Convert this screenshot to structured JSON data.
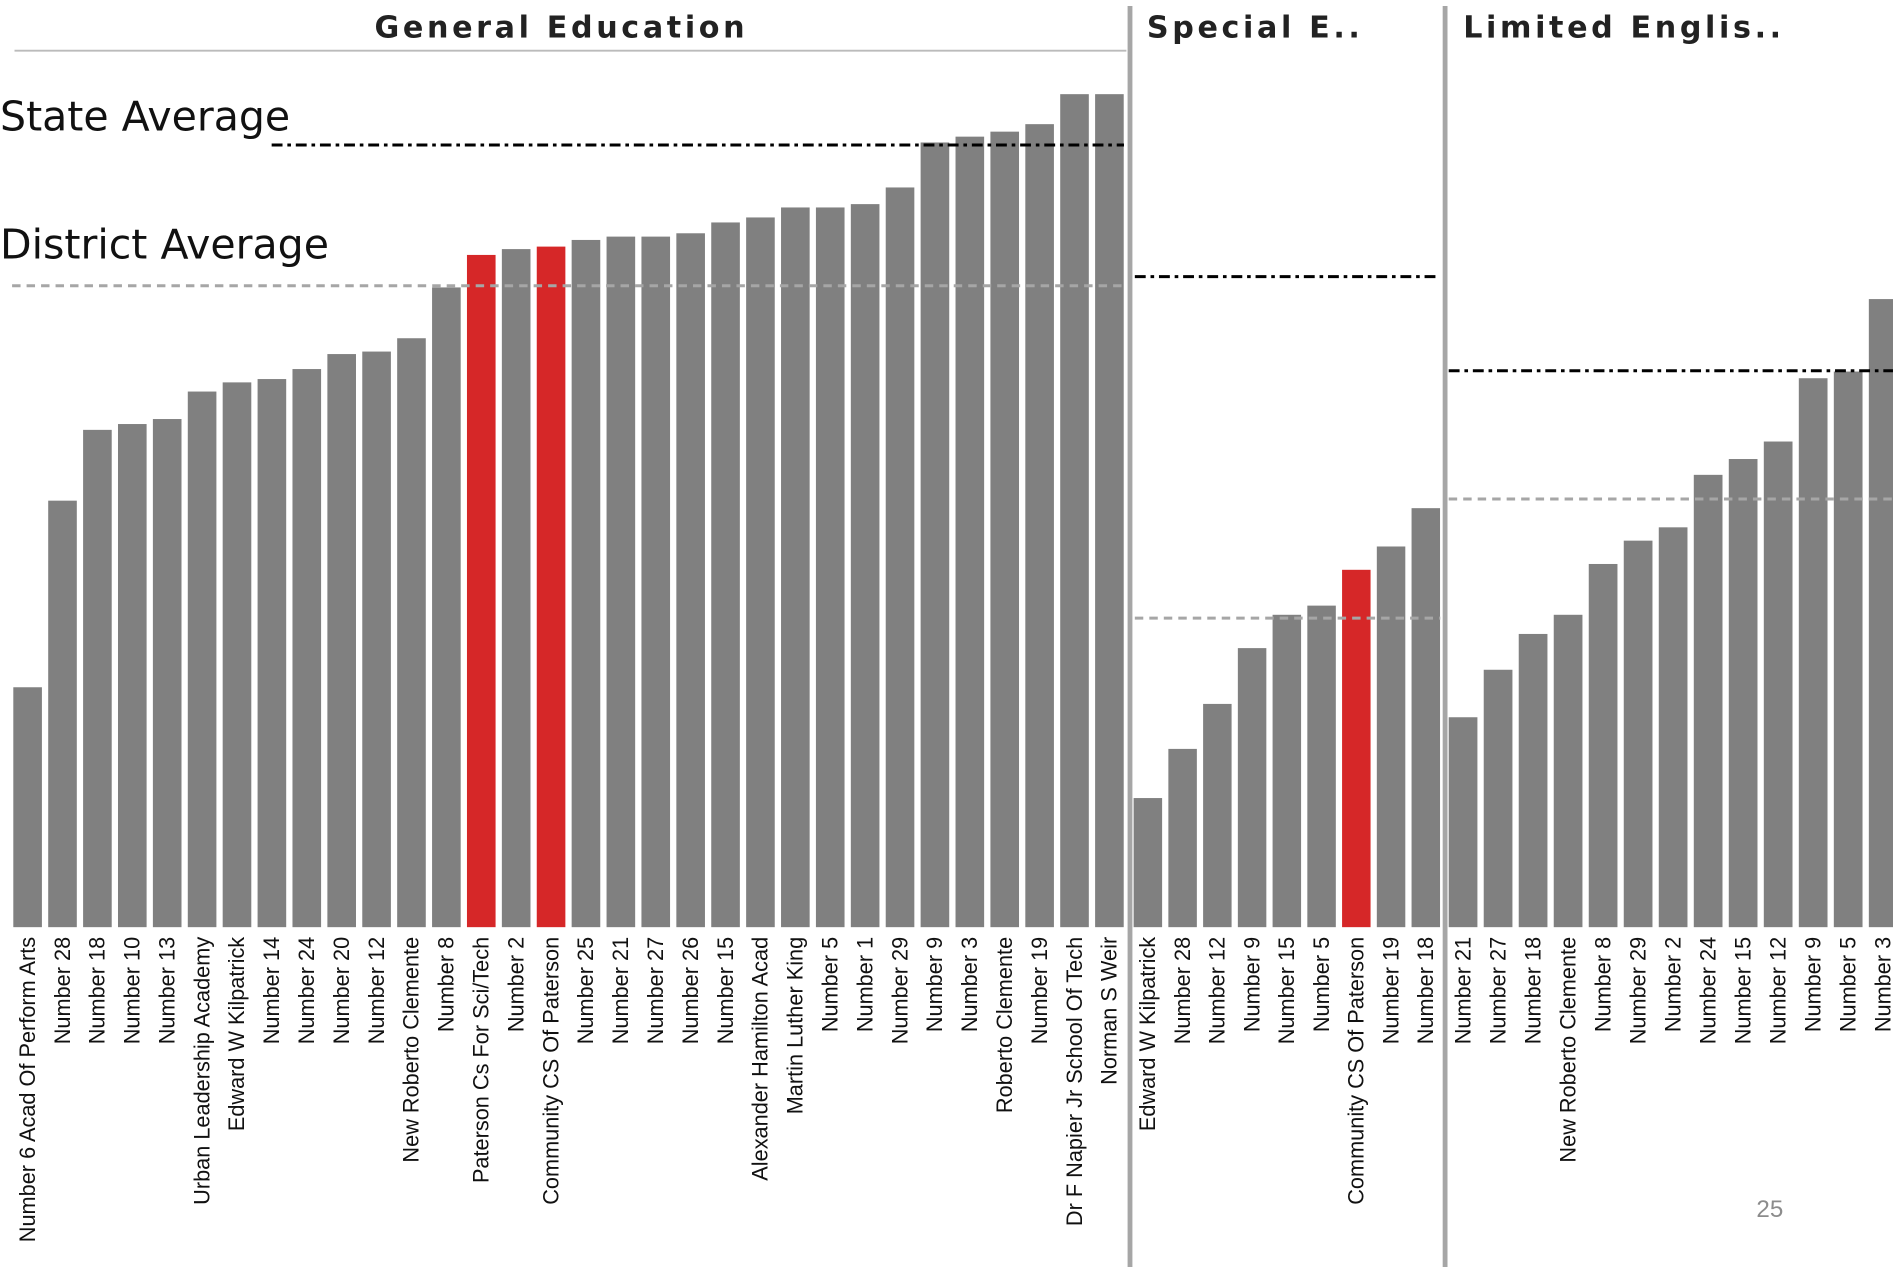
{
  "chart_data": [
    {
      "type": "bar",
      "title": "General Education",
      "categories": [
        "Number 6 Acad Of Perform Arts",
        "Number 28",
        "Number 18",
        "Number 10",
        "Number 13",
        "Urban Leadership Academy",
        "Edward W Kilpatrick",
        "Number 14",
        "Number 24",
        "Number 20",
        "Number 12",
        "New Roberto Clemente",
        "Number 8",
        "Paterson Cs For Sci/Tech",
        "Number 2",
        "Community CS Of Paterson",
        "Number 25",
        "Number 21",
        "Number 27",
        "Number 26",
        "Number 15",
        "Alexander Hamilton Acad",
        "Martin Luther King",
        "Number 5",
        "Number 1",
        "Number 29",
        "Number 9",
        "Number 3",
        "Roberto Clemente",
        "Number 19",
        "Dr F Napier Jr School Of Tech",
        "Norman S Weir"
      ],
      "values": [
        28.8,
        51.2,
        59.7,
        60.4,
        61.0,
        64.3,
        65.4,
        65.8,
        67.0,
        68.8,
        69.1,
        70.7,
        76.8,
        80.7,
        81.4,
        81.7,
        82.5,
        82.9,
        82.9,
        83.3,
        84.6,
        85.2,
        86.4,
        86.4,
        86.8,
        88.8,
        94.2,
        94.9,
        95.5,
        96.4,
        100,
        100
      ],
      "colors": [
        "#808080",
        "#808080",
        "#808080",
        "#808080",
        "#808080",
        "#808080",
        "#808080",
        "#808080",
        "#808080",
        "#808080",
        "#808080",
        "#808080",
        "#808080",
        "#d62728",
        "#808080",
        "#d62728",
        "#808080",
        "#808080",
        "#808080",
        "#808080",
        "#808080",
        "#808080",
        "#808080",
        "#808080",
        "#808080",
        "#808080",
        "#808080",
        "#808080",
        "#808080",
        "#808080",
        "#808080",
        "#808080"
      ],
      "ylim": [
        0,
        100
      ],
      "reference_lines": [
        {
          "name": "State Average",
          "value": 93.9,
          "color": "#000000"
        },
        {
          "name": "District Average",
          "value": 77.0,
          "color": "#a6a6a6"
        }
      ]
    },
    {
      "type": "bar",
      "title": "Special E..",
      "categories": [
        "Edward W Kilpatrick",
        "Number 28",
        "Number 12",
        "Number 9",
        "Number 15",
        "Number 5",
        "Community CS Of Paterson",
        "Number 19",
        "Number 18"
      ],
      "values": [
        15.5,
        21.4,
        26.8,
        33.5,
        37.5,
        38.6,
        42.9,
        45.7,
        50.3
      ],
      "colors": [
        "#808080",
        "#808080",
        "#808080",
        "#808080",
        "#808080",
        "#808080",
        "#d62728",
        "#808080",
        "#808080"
      ],
      "ylim": [
        0,
        100
      ],
      "reference_lines": [
        {
          "value": 78.1,
          "color": "#000000"
        },
        {
          "value": 37.1,
          "color": "#a6a6a6"
        }
      ]
    },
    {
      "type": "bar",
      "title": "Limited Englis..",
      "categories": [
        "Number 21",
        "Number 27",
        "Number 18",
        "New Roberto Clemente",
        "Number 8",
        "Number 29",
        "Number 2",
        "Number 24",
        "Number 15",
        "Number 12",
        "Number 9",
        "Number 5",
        "Number 3"
      ],
      "values": [
        25.2,
        30.9,
        35.2,
        37.5,
        43.6,
        46.4,
        48.0,
        54.3,
        56.2,
        58.3,
        65.9,
        66.7,
        75.4
      ],
      "colors": [
        "#808080",
        "#808080",
        "#808080",
        "#808080",
        "#808080",
        "#808080",
        "#808080",
        "#808080",
        "#808080",
        "#808080",
        "#808080",
        "#808080",
        "#808080"
      ],
      "ylim": [
        0,
        100
      ],
      "reference_lines": [
        {
          "value": 66.8,
          "color": "#000000"
        },
        {
          "value": 51.4,
          "color": "#a6a6a6"
        }
      ]
    }
  ],
  "page_number": "25"
}
